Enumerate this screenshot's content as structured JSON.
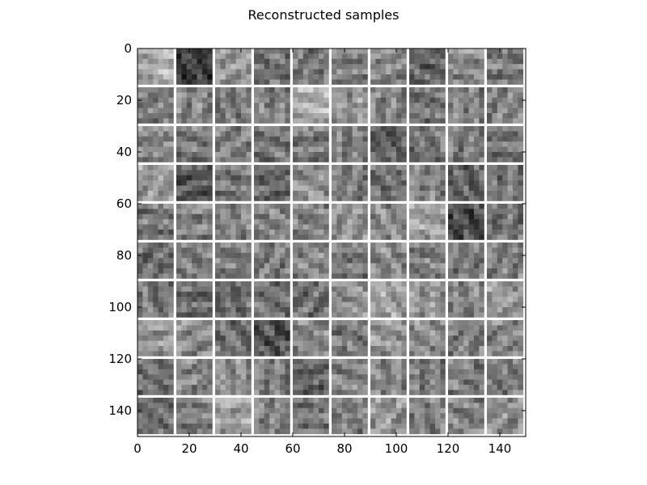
{
  "chart_data": {
    "type": "heatmap",
    "title": "Reconstructed samples",
    "colormap": "gray",
    "grid": false,
    "image_size": [
      150,
      150
    ],
    "tiles": {
      "rows": 10,
      "cols": 10,
      "tile_size": 14,
      "separator": 1,
      "separator_color": "#ffffff"
    },
    "x_range": [
      0,
      150
    ],
    "y_range": [
      0,
      150
    ],
    "y_inverted": true,
    "x_ticks": [
      0,
      20,
      40,
      60,
      80,
      100,
      120,
      140
    ],
    "y_ticks": [
      0,
      20,
      40,
      60,
      80,
      100,
      120,
      140
    ],
    "x_tick_labels": [
      "0",
      "20",
      "40",
      "60",
      "80",
      "100",
      "120",
      "140"
    ],
    "y_tick_labels": [
      "0",
      "20",
      "40",
      "60",
      "80",
      "100",
      "120",
      "140"
    ],
    "tile_mean_gray": [
      [
        0.68,
        0.22,
        0.62,
        0.45,
        0.48,
        0.5,
        0.52,
        0.4,
        0.55,
        0.48
      ],
      [
        0.48,
        0.52,
        0.48,
        0.5,
        0.68,
        0.58,
        0.52,
        0.45,
        0.5,
        0.52
      ],
      [
        0.55,
        0.48,
        0.5,
        0.45,
        0.48,
        0.5,
        0.38,
        0.45,
        0.48,
        0.45
      ],
      [
        0.62,
        0.35,
        0.48,
        0.42,
        0.55,
        0.5,
        0.45,
        0.52,
        0.38,
        0.45
      ],
      [
        0.48,
        0.5,
        0.5,
        0.52,
        0.52,
        0.55,
        0.55,
        0.62,
        0.3,
        0.45
      ],
      [
        0.45,
        0.5,
        0.48,
        0.48,
        0.52,
        0.48,
        0.55,
        0.5,
        0.48,
        0.5
      ],
      [
        0.45,
        0.42,
        0.42,
        0.45,
        0.45,
        0.58,
        0.62,
        0.58,
        0.52,
        0.6
      ],
      [
        0.58,
        0.55,
        0.45,
        0.32,
        0.52,
        0.48,
        0.58,
        0.55,
        0.5,
        0.52
      ],
      [
        0.45,
        0.52,
        0.55,
        0.48,
        0.4,
        0.52,
        0.52,
        0.48,
        0.5,
        0.48
      ],
      [
        0.45,
        0.5,
        0.62,
        0.52,
        0.48,
        0.5,
        0.58,
        0.52,
        0.52,
        0.55
      ]
    ]
  }
}
